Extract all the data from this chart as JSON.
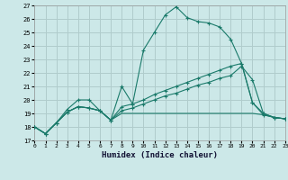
{
  "xlabel": "Humidex (Indice chaleur)",
  "bg_color": "#cce8e8",
  "grid_color": "#b0cccc",
  "line_color": "#1a7a6a",
  "xlim": [
    0,
    23
  ],
  "ylim": [
    17,
    27
  ],
  "xtick_labels": [
    "0",
    "1",
    "2",
    "3",
    "4",
    "5",
    "6",
    "7",
    "8",
    "9",
    "10",
    "11",
    "12",
    "13",
    "14",
    "15",
    "16",
    "17",
    "18",
    "19",
    "20",
    "21",
    "22",
    "23"
  ],
  "xticks": [
    0,
    1,
    2,
    3,
    4,
    5,
    6,
    7,
    8,
    9,
    10,
    11,
    12,
    13,
    14,
    15,
    16,
    17,
    18,
    19,
    20,
    21,
    22,
    23
  ],
  "yticks": [
    17,
    18,
    19,
    20,
    21,
    22,
    23,
    24,
    25,
    26,
    27
  ],
  "lines": [
    {
      "x": [
        0,
        1,
        2,
        3,
        4,
        5,
        6,
        7,
        8,
        9,
        10,
        11,
        12,
        13,
        14,
        15,
        16,
        17,
        18,
        19,
        20,
        21,
        22,
        23
      ],
      "y": [
        18.0,
        17.5,
        18.3,
        19.3,
        20.0,
        20.0,
        19.2,
        18.5,
        21.0,
        19.7,
        23.7,
        25.0,
        26.3,
        26.9,
        26.1,
        25.8,
        25.7,
        25.4,
        24.5,
        22.7,
        19.8,
        18.9,
        18.7,
        18.6
      ],
      "marker": true
    },
    {
      "x": [
        0,
        1,
        2,
        3,
        4,
        5,
        6,
        7,
        8,
        9,
        10,
        11,
        12,
        13,
        14,
        15,
        16,
        17,
        18,
        19,
        20,
        21,
        22,
        23
      ],
      "y": [
        18.0,
        17.5,
        18.3,
        19.1,
        19.5,
        19.4,
        19.2,
        18.5,
        19.0,
        19.0,
        19.0,
        19.0,
        19.0,
        19.0,
        19.0,
        19.0,
        19.0,
        19.0,
        19.0,
        19.0,
        19.0,
        18.9,
        18.7,
        18.6
      ],
      "marker": false
    },
    {
      "x": [
        0,
        1,
        2,
        3,
        4,
        5,
        6,
        7,
        8,
        9,
        10,
        11,
        12,
        13,
        14,
        15,
        16,
        17,
        18,
        19,
        20,
        21,
        22,
        23
      ],
      "y": [
        18.0,
        17.5,
        18.3,
        19.1,
        19.5,
        19.4,
        19.2,
        18.5,
        19.2,
        19.4,
        19.7,
        20.0,
        20.3,
        20.5,
        20.8,
        21.1,
        21.3,
        21.6,
        21.8,
        22.5,
        21.5,
        19.0,
        18.7,
        18.6
      ],
      "marker": true
    },
    {
      "x": [
        0,
        1,
        2,
        3,
        4,
        5,
        6,
        7,
        8,
        9,
        10,
        11,
        12,
        13,
        14,
        15,
        16,
        17,
        18,
        19,
        20,
        21,
        22,
        23
      ],
      "y": [
        18.0,
        17.5,
        18.3,
        19.1,
        19.5,
        19.4,
        19.2,
        18.5,
        19.5,
        19.7,
        20.0,
        20.4,
        20.7,
        21.0,
        21.3,
        21.6,
        21.9,
        22.2,
        22.5,
        22.7,
        19.8,
        19.0,
        18.7,
        18.6
      ],
      "marker": true
    }
  ]
}
